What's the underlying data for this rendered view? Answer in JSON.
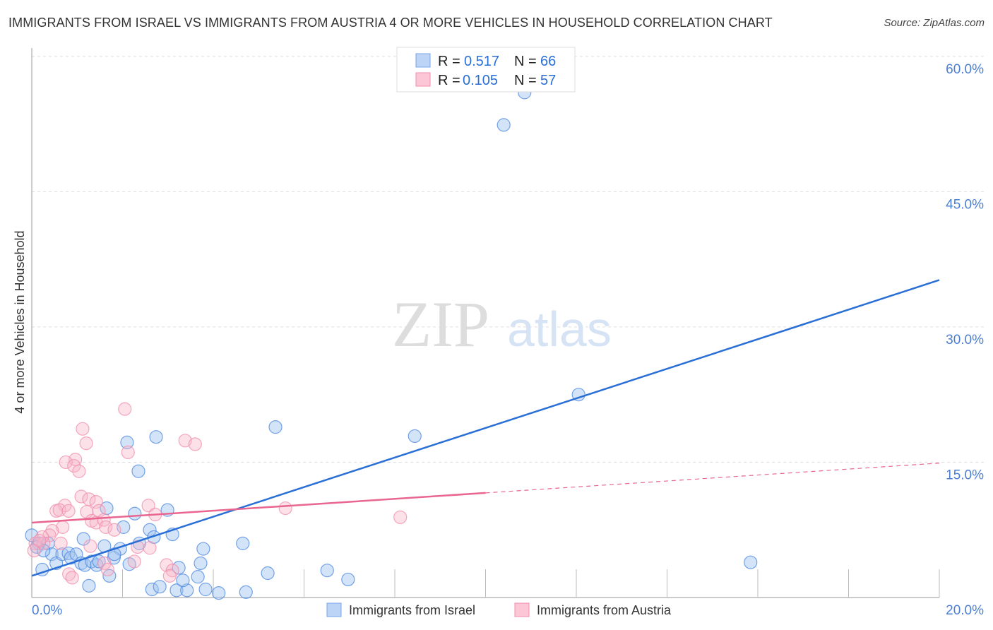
{
  "title": "IMMIGRANTS FROM ISRAEL VS IMMIGRANTS FROM AUSTRIA 4 OR MORE VEHICLES IN HOUSEHOLD CORRELATION CHART",
  "source": "Source: ZipAtlas.com",
  "watermark": "ZIPatlas",
  "chart_data": {
    "type": "scatter",
    "ylabel": "4 or more Vehicles in Household",
    "xlim": [
      0,
      20
    ],
    "ylim": [
      0,
      62
    ],
    "x_tick_labels": [
      "0.0%",
      "20.0%"
    ],
    "y_ticks": [
      15,
      30,
      45,
      60
    ],
    "y_tick_labels": [
      "15.0%",
      "30.0%",
      "45.0%",
      "60.0%"
    ],
    "grid": true,
    "legend_position": "top-center",
    "stats": [
      {
        "r_label": "R =",
        "r": "0.517",
        "n_label": "N =",
        "n": "66"
      },
      {
        "r_label": "R =",
        "r": "0.105",
        "n_label": "N =",
        "n": "57"
      }
    ],
    "series": [
      {
        "name": "Immigrants from Israel",
        "color": "#4a86e0",
        "line_color": "#2a6fd6",
        "trend": [
          [
            0,
            2.4
          ],
          [
            20,
            35.2
          ]
        ],
        "points": [
          [
            10.86,
            56.0
          ],
          [
            10.4,
            52.4
          ],
          [
            12.05,
            22.5
          ],
          [
            15.84,
            3.9
          ],
          [
            8.44,
            17.9
          ],
          [
            5.37,
            18.9
          ],
          [
            2.74,
            17.8
          ],
          [
            2.1,
            17.2
          ],
          [
            2.35,
            14.0
          ],
          [
            1.65,
            9.9
          ],
          [
            2.99,
            9.7
          ],
          [
            2.27,
            9.3
          ],
          [
            2.02,
            7.8
          ],
          [
            2.6,
            7.5
          ],
          [
            3.1,
            7.0
          ],
          [
            2.69,
            6.7
          ],
          [
            1.14,
            6.5
          ],
          [
            1.6,
            5.7
          ],
          [
            1.95,
            5.4
          ],
          [
            3.78,
            5.4
          ],
          [
            4.65,
            6.0
          ],
          [
            2.37,
            6.0
          ],
          [
            1.81,
            4.4
          ],
          [
            2.15,
            3.7
          ],
          [
            3.24,
            3.3
          ],
          [
            3.72,
            3.8
          ],
          [
            5.2,
            2.7
          ],
          [
            6.51,
            3.0
          ],
          [
            6.97,
            2.0
          ],
          [
            1.71,
            2.4
          ],
          [
            1.26,
            1.3
          ],
          [
            2.65,
            0.9
          ],
          [
            2.82,
            1.2
          ],
          [
            3.19,
            0.8
          ],
          [
            3.42,
            0.8
          ],
          [
            3.33,
            1.9
          ],
          [
            3.66,
            2.3
          ],
          [
            3.83,
            0.9
          ],
          [
            4.12,
            0.5
          ],
          [
            4.72,
            0.6
          ],
          [
            0,
            6.9
          ],
          [
            0.16,
            6.0
          ],
          [
            0.23,
            3.1
          ],
          [
            0.36,
            6.0
          ],
          [
            0.44,
            4.8
          ],
          [
            0.54,
            3.8
          ],
          [
            0.67,
            4.8
          ],
          [
            0.81,
            4.9
          ],
          [
            0.86,
            4.4
          ],
          [
            0.98,
            4.8
          ],
          [
            1.09,
            3.8
          ],
          [
            1.17,
            3.6
          ],
          [
            1.32,
            4.0
          ],
          [
            1.43,
            3.6
          ],
          [
            1.48,
            4.0
          ],
          [
            1.82,
            4.8
          ],
          [
            0.11,
            5.6
          ],
          [
            0.26,
            5.2
          ]
        ]
      },
      {
        "name": "Immigrants from Austria",
        "color": "#f08cab",
        "line_color": "#e8668f",
        "trend": [
          [
            0,
            8.3
          ],
          [
            10,
            11.6
          ]
        ],
        "trend_dashed": [
          [
            10,
            11.6
          ],
          [
            20,
            14.9
          ]
        ],
        "points": [
          [
            2.05,
            20.9
          ],
          [
            1.12,
            18.7
          ],
          [
            1.2,
            17.1
          ],
          [
            2.12,
            16.1
          ],
          [
            3.38,
            17.4
          ],
          [
            3.6,
            17.0
          ],
          [
            0.96,
            15.3
          ],
          [
            0.75,
            15.0
          ],
          [
            0.93,
            14.6
          ],
          [
            1.04,
            14.0
          ],
          [
            1.09,
            11.2
          ],
          [
            1.26,
            10.9
          ],
          [
            1.42,
            10.6
          ],
          [
            0.73,
            10.2
          ],
          [
            0.54,
            9.6
          ],
          [
            0.61,
            9.7
          ],
          [
            0.81,
            9.6
          ],
          [
            2.57,
            10.2
          ],
          [
            1.21,
            9.5
          ],
          [
            1.48,
            9.6
          ],
          [
            2.72,
            9.2
          ],
          [
            5.59,
            9.9
          ],
          [
            8.12,
            8.9
          ],
          [
            1.32,
            8.5
          ],
          [
            1.42,
            8.3
          ],
          [
            1.59,
            8.6
          ],
          [
            1.63,
            7.8
          ],
          [
            1.82,
            7.5
          ],
          [
            0.68,
            7.8
          ],
          [
            0.45,
            7.4
          ],
          [
            0.39,
            6.9
          ],
          [
            0.23,
            6.7
          ],
          [
            0.08,
            6.0
          ],
          [
            0.05,
            5.2
          ],
          [
            0.64,
            6.0
          ],
          [
            1.29,
            5.7
          ],
          [
            2.33,
            5.6
          ],
          [
            2.6,
            5.5
          ],
          [
            1.6,
            3.8
          ],
          [
            2.26,
            4.0
          ],
          [
            2.97,
            3.6
          ],
          [
            3.1,
            3.0
          ],
          [
            3.04,
            2.4
          ],
          [
            0.82,
            2.6
          ],
          [
            0.89,
            2.2
          ],
          [
            1.67,
            3.1
          ],
          [
            0.26,
            6.0
          ],
          [
            0.17,
            6.3
          ]
        ]
      }
    ]
  }
}
